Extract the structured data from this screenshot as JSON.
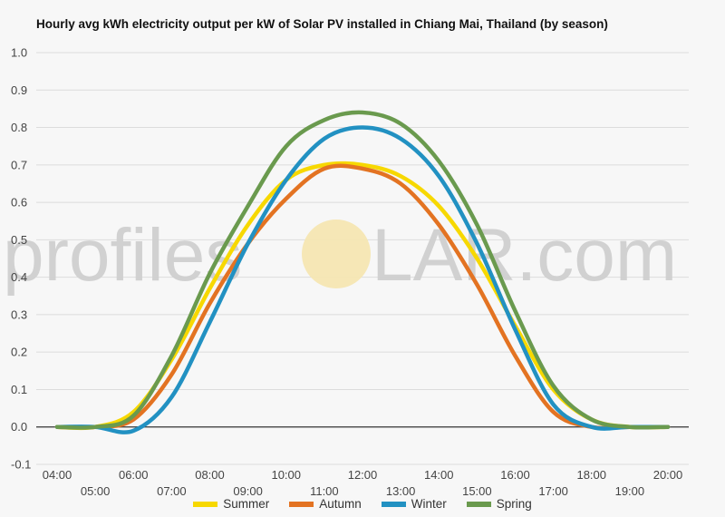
{
  "title": "Hourly avg kWh electricity output per kW of Solar PV installed in Chiang Mai, Thailand (by season)",
  "watermark": {
    "text_left": "profiles",
    "text_right": "LAR.com",
    "sun_color": "#f6e7b3"
  },
  "chart_data": {
    "type": "line",
    "title": "Hourly avg kWh electricity output per kW of Solar PV installed in Chiang Mai, Thailand (by season)",
    "xlabel": "",
    "ylabel": "",
    "x": [
      "04:00",
      "05:00",
      "06:00",
      "07:00",
      "08:00",
      "09:00",
      "10:00",
      "11:00",
      "12:00",
      "13:00",
      "14:00",
      "15:00",
      "16:00",
      "17:00",
      "18:00",
      "19:00",
      "20:00"
    ],
    "ylim": [
      -0.1,
      1.0
    ],
    "yticks": [
      "1.0",
      "0.9",
      "0.8",
      "0.7",
      "0.6",
      "0.5",
      "0.4",
      "0.3",
      "0.2",
      "0.1",
      "0.0",
      "-0.1"
    ],
    "grid": true,
    "legend_position": "bottom",
    "series": [
      {
        "name": "Summer",
        "color": "#f7d800",
        "values": [
          0.0,
          0.0,
          0.04,
          0.18,
          0.37,
          0.54,
          0.66,
          0.7,
          0.7,
          0.67,
          0.59,
          0.45,
          0.27,
          0.1,
          0.02,
          0.0,
          0.0
        ]
      },
      {
        "name": "Autumn",
        "color": "#e37322",
        "values": [
          0.0,
          0.0,
          0.02,
          0.14,
          0.33,
          0.49,
          0.61,
          0.69,
          0.69,
          0.65,
          0.54,
          0.38,
          0.19,
          0.04,
          0.0,
          0.0,
          0.0
        ]
      },
      {
        "name": "Winter",
        "color": "#2291c2",
        "values": [
          0.0,
          0.0,
          -0.01,
          0.08,
          0.28,
          0.49,
          0.66,
          0.77,
          0.8,
          0.77,
          0.67,
          0.49,
          0.26,
          0.06,
          0.0,
          0.0,
          0.0
        ]
      },
      {
        "name": "Spring",
        "color": "#6a9a4e",
        "values": [
          0.0,
          0.0,
          0.03,
          0.19,
          0.41,
          0.59,
          0.75,
          0.82,
          0.84,
          0.81,
          0.71,
          0.54,
          0.31,
          0.11,
          0.02,
          0.0,
          0.0
        ]
      }
    ]
  }
}
